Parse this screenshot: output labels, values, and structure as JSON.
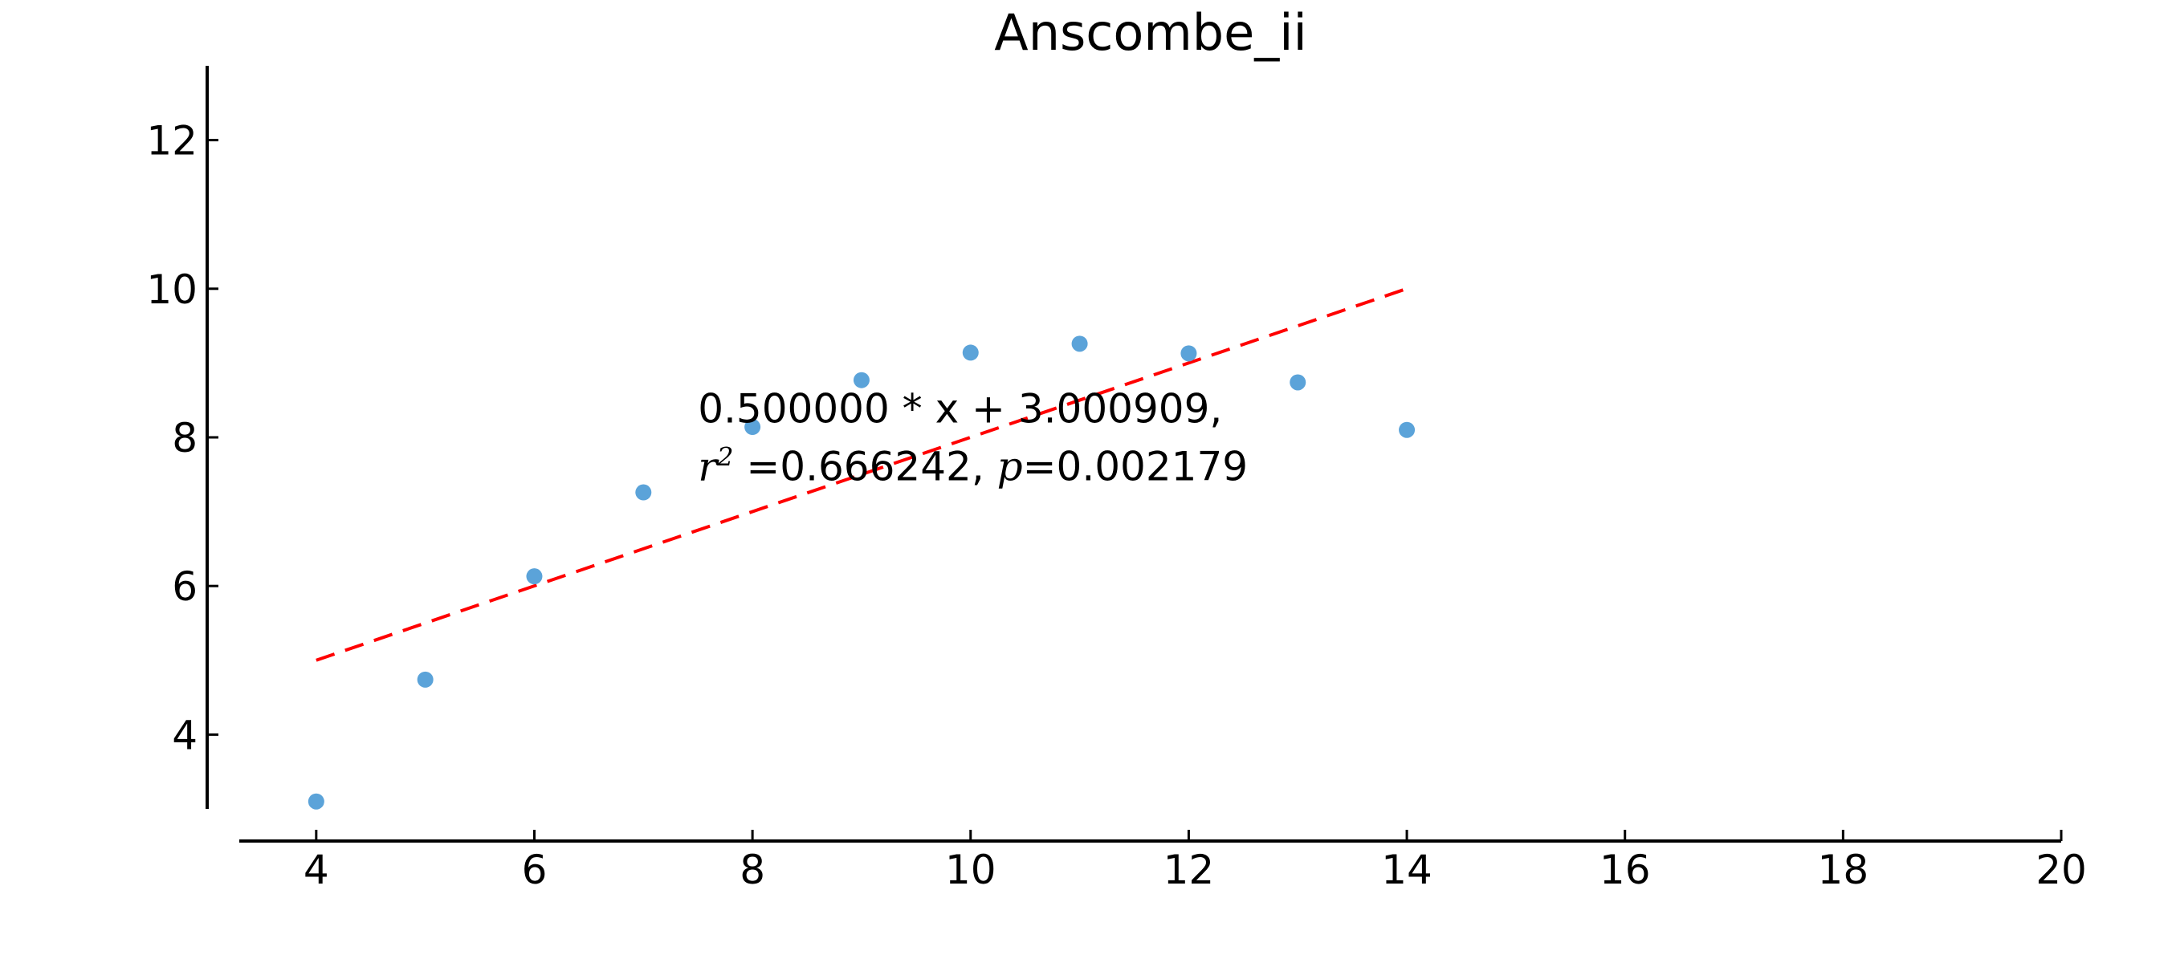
{
  "chart_data": {
    "type": "scatter",
    "title": "Anscombe_ii",
    "xlabel": "",
    "ylabel": "",
    "xlim": [
      3,
      20
    ],
    "ylim": [
      3,
      13
    ],
    "xticks": [
      4,
      6,
      8,
      10,
      12,
      14,
      16,
      18,
      20
    ],
    "yticks": [
      4,
      6,
      8,
      10,
      12
    ],
    "x_tick_labels": [
      "4",
      "6",
      "8",
      "10",
      "12",
      "14",
      "16",
      "18",
      "20"
    ],
    "y_tick_labels": [
      "4",
      "6",
      "8",
      "10",
      "12"
    ],
    "grid": false,
    "series": [
      {
        "kind": "scatter",
        "color": "#5ba3d9",
        "points": [
          {
            "x": 4,
            "y": 3.1
          },
          {
            "x": 5,
            "y": 4.74
          },
          {
            "x": 6,
            "y": 6.13
          },
          {
            "x": 7,
            "y": 7.26
          },
          {
            "x": 8,
            "y": 8.14
          },
          {
            "x": 9,
            "y": 8.77
          },
          {
            "x": 10,
            "y": 9.14
          },
          {
            "x": 11,
            "y": 9.26
          },
          {
            "x": 12,
            "y": 9.13
          },
          {
            "x": 13,
            "y": 8.74
          },
          {
            "x": 14,
            "y": 8.1
          }
        ]
      },
      {
        "kind": "fit-line",
        "color": "#ff0000",
        "line_style": "dashed",
        "points": [
          {
            "x": 4,
            "y": 5.000909
          },
          {
            "x": 14,
            "y": 10.000909
          }
        ]
      }
    ],
    "annotation": {
      "line1": "0.500000 * x + 3.000909,",
      "r_symbol": "r",
      "r_exponent": "2",
      "r_value": " =0.666242, ",
      "p_symbol": "p",
      "p_value": "=0.002179",
      "anchor": {
        "x": 7.5,
        "y": 8.2
      }
    }
  }
}
